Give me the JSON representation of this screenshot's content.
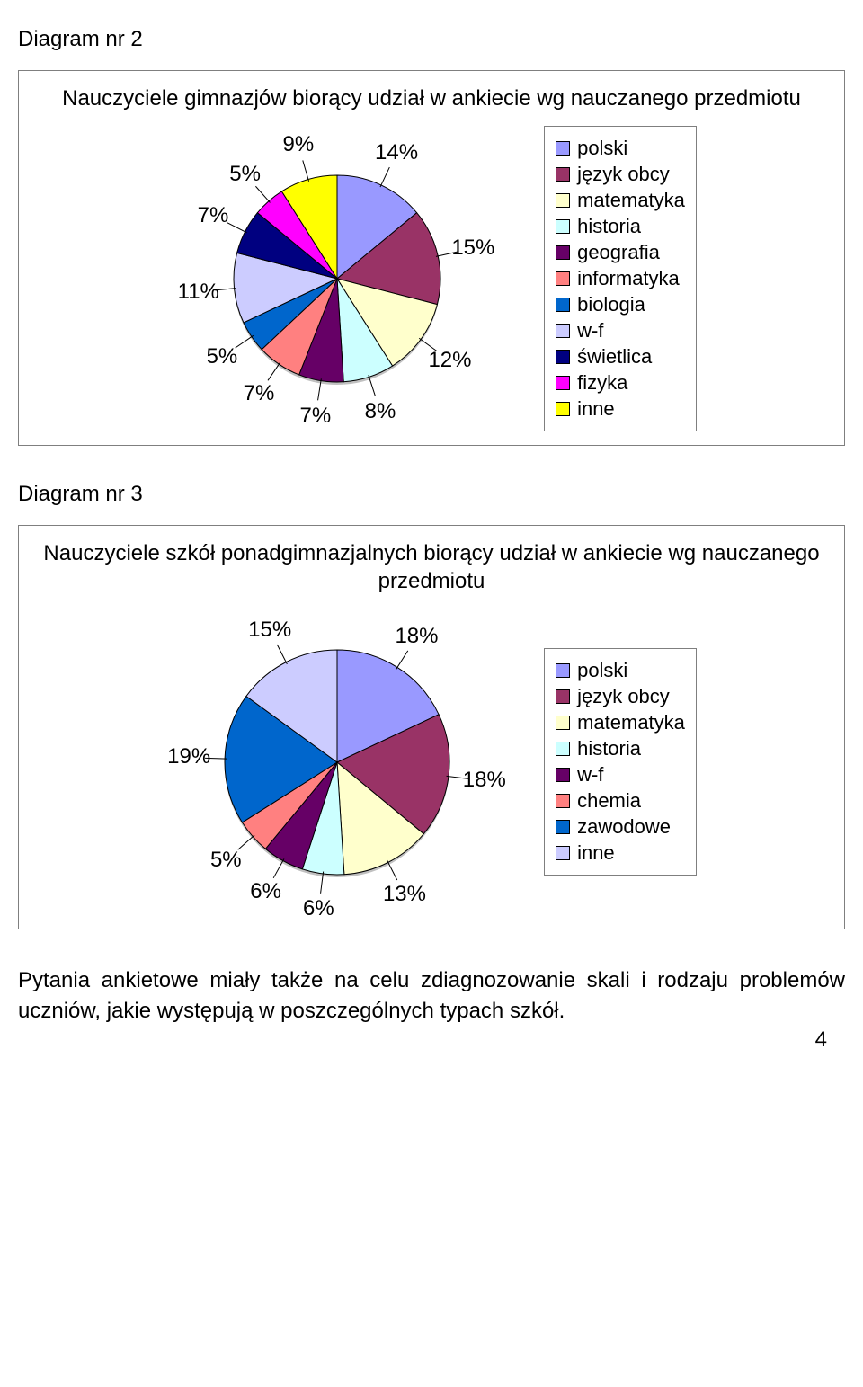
{
  "diagram2": {
    "heading": "Diagram nr 2",
    "title": "Nauczyciele gimnazjów biorący udział w ankiecie wg nauczanego przedmiotu",
    "type": "pie",
    "pie_radius": 115,
    "slices": [
      {
        "label": "polski",
        "value": 14,
        "color": "#9999ff"
      },
      {
        "label": "język obcy",
        "value": 15,
        "color": "#993366"
      },
      {
        "label": "matematyka",
        "value": 12,
        "color": "#ffffcc"
      },
      {
        "label": "historia",
        "value": 8,
        "color": "#ccffff"
      },
      {
        "label": "geografia",
        "value": 7,
        "color": "#660066"
      },
      {
        "label": "informatyka",
        "value": 7,
        "color": "#ff8080"
      },
      {
        "label": "biologia",
        "value": 5,
        "color": "#0066cc"
      },
      {
        "label": "w-f",
        "value": 11,
        "color": "#ccccff"
      },
      {
        "label": "świetlica",
        "value": 7,
        "color": "#000080"
      },
      {
        "label": "fizyka",
        "value": 5,
        "color": "#ff00ff"
      },
      {
        "label": "inne",
        "value": 9,
        "color": "#ffff00"
      }
    ],
    "label_fontsize": 24,
    "legend_fontsize": 22,
    "border_color": "#000000",
    "background_color": "#ffffff"
  },
  "diagram3": {
    "heading": "Diagram nr 3",
    "title": "Nauczyciele szkół ponadgimnazjalnych biorący udział w ankiecie wg nauczanego przedmiotu",
    "type": "pie",
    "pie_radius": 125,
    "slices": [
      {
        "label": "polski",
        "value": 18,
        "color": "#9999ff"
      },
      {
        "label": "język obcy",
        "value": 18,
        "color": "#993366"
      },
      {
        "label": "matematyka",
        "value": 13,
        "color": "#ffffcc"
      },
      {
        "label": "historia",
        "value": 6,
        "color": "#ccffff"
      },
      {
        "label": "w-f",
        "value": 6,
        "color": "#660066"
      },
      {
        "label": "chemia",
        "value": 5,
        "color": "#ff8080"
      },
      {
        "label": "zawodowe",
        "value": 19,
        "color": "#0066cc"
      },
      {
        "label": "inne",
        "value": 15,
        "color": "#ccccff"
      }
    ],
    "label_fontsize": 24,
    "legend_fontsize": 22,
    "border_color": "#000000",
    "background_color": "#ffffff"
  },
  "bodytext": "Pytania ankietowe miały także na celu zdiagnozowanie skali i rodzaju problemów uczniów, jakie występują w poszczególnych typach szkół.",
  "page_number": "4",
  "title_fontsize": 24,
  "body_fontsize": 24
}
